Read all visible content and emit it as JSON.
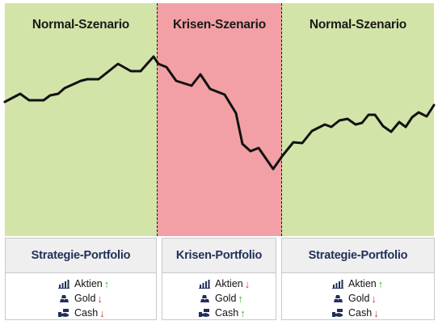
{
  "zones": [
    {
      "title": "Normal-Szenario",
      "color": "#d3e4a9"
    },
    {
      "title": "Krisen-Szenario",
      "color": "#f2a0a5"
    },
    {
      "title": "Normal-Szenario",
      "color": "#d3e4a9"
    }
  ],
  "cards": [
    {
      "title": "Strategie-Portfolio",
      "items": [
        {
          "icon": "chart-icon",
          "label": "Aktien",
          "arrow": "↑",
          "direction": "up"
        },
        {
          "icon": "gold-icon",
          "label": "Gold",
          "arrow": "↓",
          "direction": "down"
        },
        {
          "icon": "cash-icon",
          "label": "Cash",
          "arrow": "↓",
          "direction": "down"
        }
      ]
    },
    {
      "title": "Krisen-Portfolio",
      "items": [
        {
          "icon": "chart-icon",
          "label": "Aktien",
          "arrow": "↓",
          "direction": "down"
        },
        {
          "icon": "gold-icon",
          "label": "Gold",
          "arrow": "↑",
          "direction": "up"
        },
        {
          "icon": "cash-icon",
          "label": "Cash",
          "arrow": "↑",
          "direction": "up"
        }
      ]
    },
    {
      "title": "Strategie-Portfolio",
      "items": [
        {
          "icon": "chart-icon",
          "label": "Aktien",
          "arrow": "↑",
          "direction": "up"
        },
        {
          "icon": "gold-icon",
          "label": "Gold",
          "arrow": "↓",
          "direction": "down"
        },
        {
          "icon": "cash-icon",
          "label": "Cash",
          "arrow": "↓",
          "direction": "down"
        }
      ]
    }
  ],
  "colors": {
    "up": "#3fae3f",
    "down": "#e03131",
    "line": "#111111",
    "title": "#1f2f5a"
  }
}
